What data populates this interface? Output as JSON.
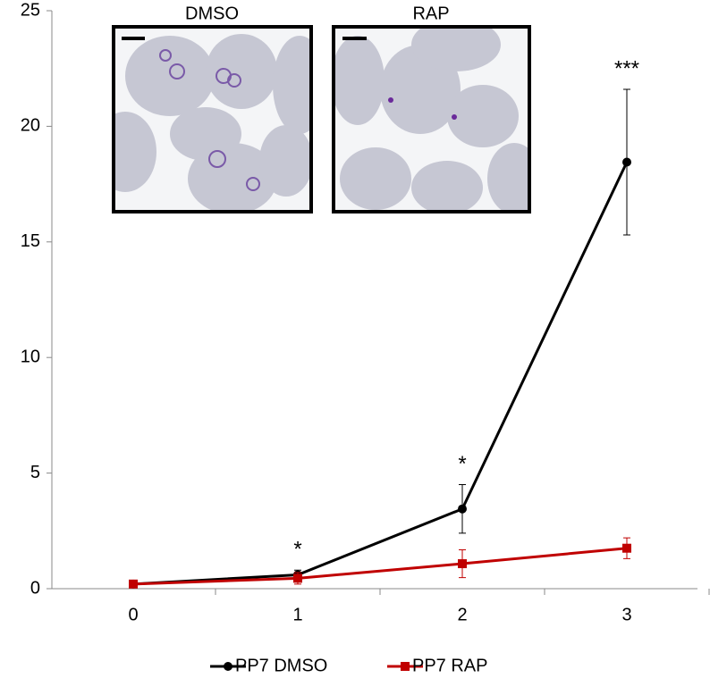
{
  "chart_data": {
    "type": "line",
    "categories": [
      "0",
      "1",
      "2",
      "3"
    ],
    "series": [
      {
        "name": "PP7 DMSO",
        "color": "#000000",
        "marker": "circle",
        "values": [
          0.2,
          0.6,
          3.45,
          18.45
        ],
        "errors": [
          0.1,
          0.2,
          1.05,
          3.15
        ]
      },
      {
        "name": "PP7 RAP",
        "color": "#c00000",
        "marker": "square",
        "values": [
          0.2,
          0.45,
          1.08,
          1.75
        ],
        "errors": [
          0.1,
          0.25,
          0.6,
          0.45
        ]
      }
    ],
    "significance": [
      null,
      "*",
      "*",
      "***"
    ],
    "insets": [
      "DMSO",
      "RAP"
    ],
    "ylim": [
      0,
      25
    ],
    "yticks": [
      0,
      5,
      10,
      15,
      20,
      25
    ],
    "grid": false,
    "legend": "bottom"
  }
}
